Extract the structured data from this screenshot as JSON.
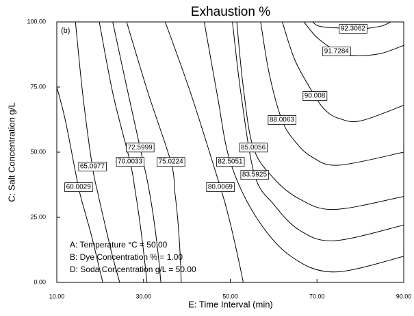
{
  "chart_data": {
    "type": "contour",
    "title": "Exhaustion %",
    "xlabel": "E: Time Interval (min)",
    "ylabel": "C: Salt Concentration  g/L",
    "annotations": [
      "(b)",
      "A: Temperature °C = 50.00",
      "B: Dye Concentration % = 1.00",
      "D: Soda Concentration g/L = 50.00"
    ],
    "xlim": [
      10,
      90
    ],
    "ylim": [
      0,
      100
    ],
    "xticks": [
      {
        "value": 10,
        "label": "10.00"
      },
      {
        "value": 30,
        "label": "30.00"
      },
      {
        "value": 50,
        "label": "50.00"
      },
      {
        "value": 70,
        "label": "70.00"
      },
      {
        "value": 90,
        "label": "90.00"
      }
    ],
    "yticks": [
      {
        "value": 0,
        "label": "0.00"
      },
      {
        "value": 25,
        "label": "25.00"
      },
      {
        "value": 50,
        "label": "50.00"
      },
      {
        "value": 75,
        "label": "75.00"
      },
      {
        "value": 100,
        "label": "100.00"
      }
    ],
    "color": "#000000",
    "series": [
      {
        "level": 60.0029,
        "x": [
          10,
          12,
          15,
          16.5,
          18,
          19.3,
          20.6
        ],
        "y": [
          75,
          62,
          36.6,
          27,
          18,
          9,
          0
        ]
      },
      {
        "level": 65.0977,
        "x": [
          14.3,
          16,
          18.2,
          19.5,
          21,
          22.7,
          24.5
        ],
        "y": [
          100,
          72,
          44.5,
          34,
          23,
          11,
          0
        ]
      },
      {
        "level": 70.0033,
        "x": [
          19.8,
          23,
          26.9,
          28,
          29,
          30,
          30.8
        ],
        "y": [
          100,
          72,
          46.3,
          36,
          25,
          12,
          0
        ]
      },
      {
        "level": 72.5999,
        "x": [
          22.9,
          26,
          29.2,
          31,
          32.3,
          33.3,
          34
        ],
        "y": [
          100,
          76,
          51.8,
          38,
          25,
          12,
          0
        ]
      },
      {
        "level": 75.0224,
        "x": [
          26.1,
          31,
          36.3,
          37.2,
          37.9,
          38.4,
          38.7
        ],
        "y": [
          100,
          73,
          46.3,
          35,
          24,
          12,
          0
        ]
      },
      {
        "level": 80.0069,
        "x": [
          35,
          41,
          47.7,
          49.5,
          50.8,
          52,
          53
        ],
        "y": [
          100,
          72,
          36.6,
          26,
          17,
          8,
          0
        ]
      },
      {
        "level": 82.5051,
        "x": [
          44,
          47,
          50,
          56,
          64,
          74,
          90
        ],
        "y": [
          100,
          72,
          46.3,
          25,
          10,
          4,
          10
        ]
      },
      {
        "level": 83.5925,
        "x": [
          50.5,
          52.5,
          55.6,
          60,
          66,
          74,
          90
        ],
        "y": [
          100,
          72,
          41.3,
          30,
          20,
          16,
          22
        ]
      },
      {
        "level": 85.0056,
        "x": [
          51.5,
          53,
          55.3,
          60,
          66,
          74,
          90
        ],
        "y": [
          100,
          75,
          51.8,
          40,
          32,
          28,
          33
        ]
      },
      {
        "level": 88.0063,
        "x": [
          57,
          59,
          61.9,
          65,
          69,
          75,
          90
        ],
        "y": [
          100,
          80,
          62.4,
          54,
          48,
          45,
          50
        ]
      },
      {
        "level": 90.008,
        "x": [
          62,
          65,
          69.5,
          72,
          75,
          80,
          90
        ],
        "y": [
          100,
          85,
          71.6,
          66,
          63,
          62,
          68
        ]
      },
      {
        "level": 91.7284,
        "x": [
          67,
          70,
          74.5,
          77,
          80,
          85,
          90
        ],
        "y": [
          100,
          94,
          88.7,
          87.5,
          87,
          88,
          91
        ]
      },
      {
        "level": 92.3062,
        "x": [
          69,
          71,
          78.3,
          80,
          82,
          85,
          87
        ],
        "y": [
          100,
          98.2,
          97.4,
          97.3,
          97.6,
          98.5,
          100
        ]
      }
    ]
  }
}
